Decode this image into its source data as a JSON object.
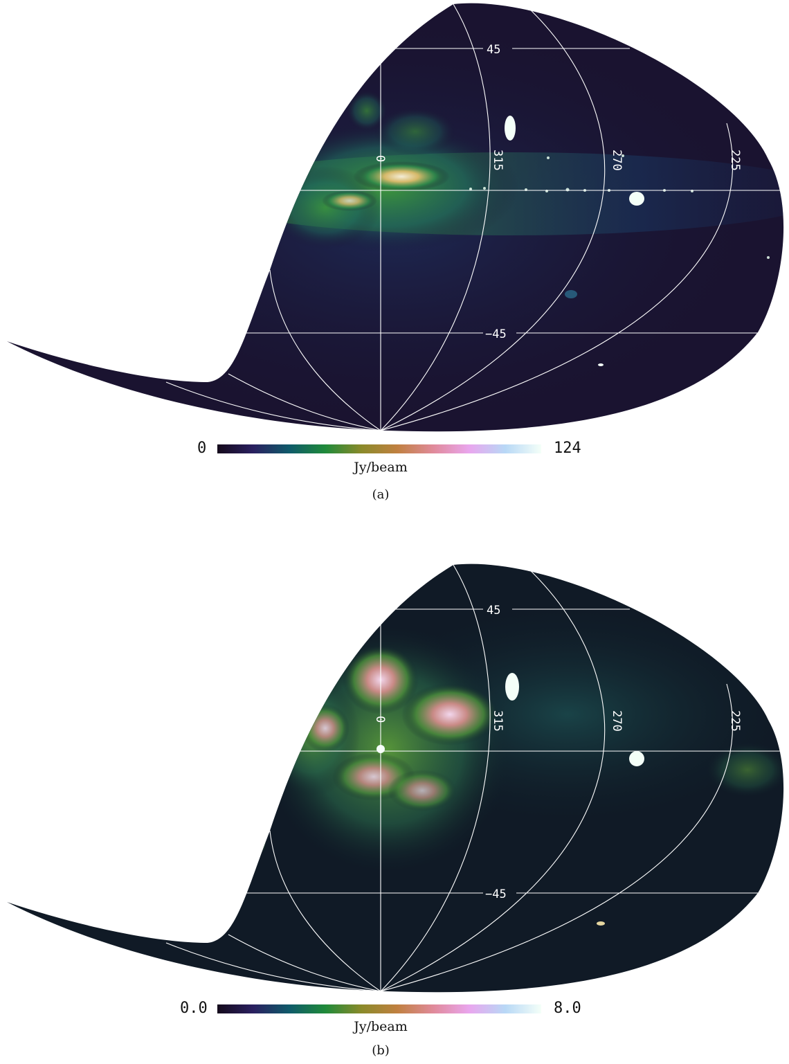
{
  "colors": {
    "background_dark": "#17102a",
    "colormap": [
      "#150a1c",
      "#2a2060",
      "#0f5a6a",
      "#1f8a3a",
      "#8a8a2a",
      "#c08040",
      "#e08a9a",
      "#e9a6ee",
      "#b8d8f6",
      "#f4fff8"
    ]
  },
  "panels": [
    {
      "lat_labels": [
        "45",
        "−45"
      ],
      "lon_labels": [
        "0",
        "315",
        "270",
        "225"
      ],
      "colorbar": {
        "min": "0",
        "max": "124",
        "unit": "Jy/beam"
      },
      "caption": "(a)"
    },
    {
      "lat_labels": [
        "45",
        "−45"
      ],
      "lon_labels": [
        "0",
        "315",
        "270",
        "225"
      ],
      "colorbar": {
        "min": "0.0",
        "max": "8.0",
        "unit": "Jy/beam"
      },
      "caption": "(b)"
    }
  ]
}
